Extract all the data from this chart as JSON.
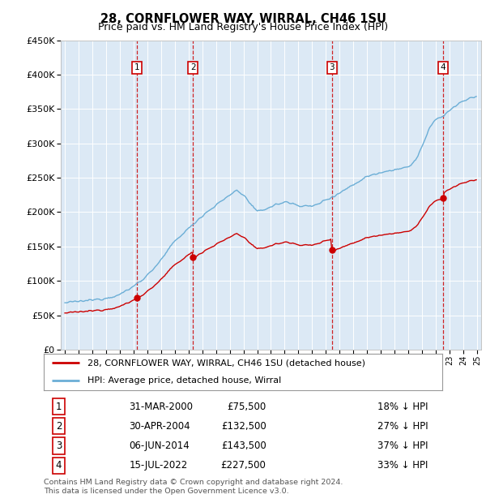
{
  "title": "28, CORNFLOWER WAY, WIRRAL, CH46 1SU",
  "subtitle": "Price paid vs. HM Land Registry's House Price Index (HPI)",
  "ylim": [
    0,
    450000
  ],
  "sale_dates_year": [
    2000.25,
    2004.33,
    2014.43,
    2022.54
  ],
  "sale_prices": [
    75500,
    132500,
    143500,
    227500
  ],
  "sale_labels": [
    "1",
    "2",
    "3",
    "4"
  ],
  "sale_date_str": [
    "31-MAR-2000",
    "30-APR-2004",
    "06-JUN-2014",
    "15-JUL-2022"
  ],
  "sale_pct": [
    "18% ↓ HPI",
    "27% ↓ HPI",
    "37% ↓ HPI",
    "33% ↓ HPI"
  ],
  "sale_price_str": [
    "£75,500",
    "£132,500",
    "£143,500",
    "£227,500"
  ],
  "legend_red": "28, CORNFLOWER WAY, WIRRAL, CH46 1SU (detached house)",
  "legend_blue": "HPI: Average price, detached house, Wirral",
  "footer": "Contains HM Land Registry data © Crown copyright and database right 2024.\nThis data is licensed under the Open Government Licence v3.0.",
  "bg_color": "#ffffff",
  "plot_bg_color": "#dce9f5",
  "grid_color": "#ffffff",
  "red_line_color": "#cc0000",
  "blue_line_color": "#6baed6",
  "vline_color": "#cc0000",
  "box_edge_color": "#cc0000",
  "hpi_anchors_t": [
    1995.0,
    1996.0,
    1997.0,
    1998.0,
    1999.0,
    2000.0,
    2001.0,
    2002.0,
    2003.0,
    2004.33,
    2005.0,
    2006.0,
    2007.5,
    2008.0,
    2009.0,
    2010.0,
    2011.0,
    2012.0,
    2013.0,
    2014.43,
    2015.0,
    2016.0,
    2017.0,
    2018.0,
    2019.0,
    2020.0,
    2020.5,
    2021.0,
    2021.5,
    2022.0,
    2022.54,
    2023.0,
    2023.5,
    2024.0,
    2024.9
  ],
  "hpi_anchors_v": [
    68000,
    70000,
    72000,
    75000,
    80000,
    92000,
    108000,
    130000,
    158000,
    182000,
    195000,
    210000,
    232000,
    225000,
    200000,
    208000,
    215000,
    210000,
    208000,
    222000,
    228000,
    240000,
    252000,
    258000,
    262000,
    265000,
    275000,
    295000,
    320000,
    335000,
    340000,
    348000,
    355000,
    362000,
    368000
  ]
}
